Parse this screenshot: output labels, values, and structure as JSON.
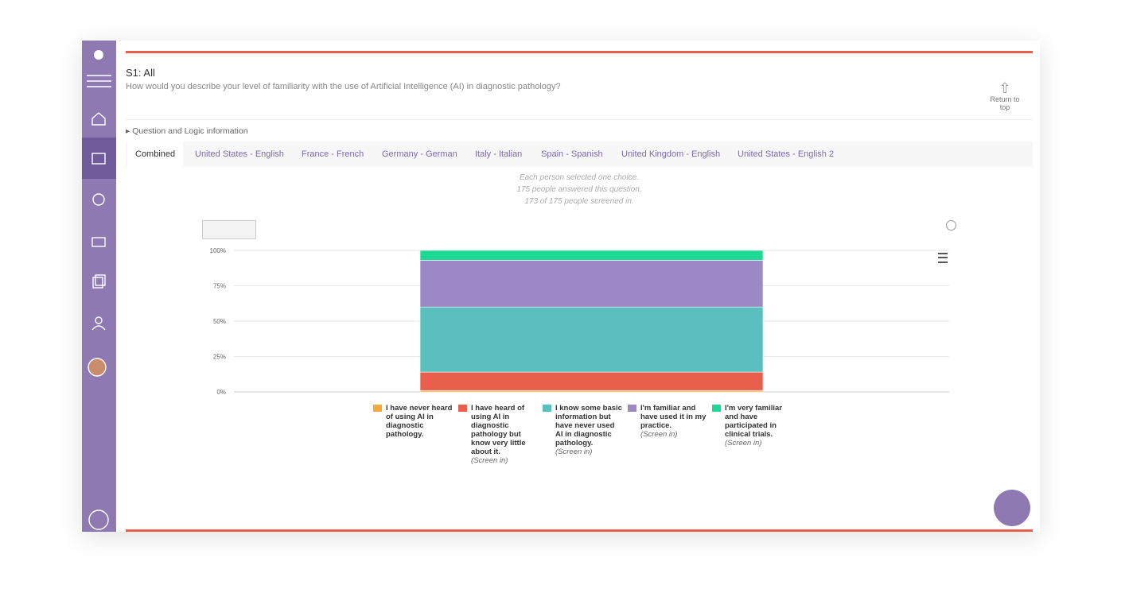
{
  "header": {
    "title": "S1: All",
    "question": "How would you describe your level of familiarity with the use of Artificial Intelligence (AI) in diagnostic pathology?",
    "return_link": "Return to top"
  },
  "logic_toggle": "Question and Logic information",
  "tabs": [
    "Combined",
    "United States - English",
    "France - French",
    "Germany - German",
    "Italy - Italian",
    "Spain - Spanish",
    "United Kingdom - English",
    "United States - English 2"
  ],
  "info": [
    "Each person selected one choice.",
    "175 people answered this question.",
    "173 of 175 people screened in."
  ],
  "chart_data": {
    "type": "stacked_bar",
    "categories": [
      null
    ],
    "ylim": [
      0,
      100
    ],
    "yticks": [
      {
        "value": 0,
        "label": "0%"
      },
      {
        "value": 25,
        "label": "25%"
      },
      {
        "value": 50,
        "label": "50%"
      },
      {
        "value": 75,
        "label": "75%"
      },
      {
        "value": 100,
        "label": "100%"
      }
    ],
    "grid": true,
    "series": [
      {
        "name": "I have never heard of using AI in diagnostic pathology.",
        "color": "#f5a93b",
        "values": [
          1
        ]
      },
      {
        "name": "I have heard of using AI in diagnostic pathology but know very little about it.",
        "tag": "(Screen in)",
        "color": "#e8604c",
        "values": [
          13
        ]
      },
      {
        "name": "I know some basic information but have never used AI in diagnostic pathology.",
        "tag": "(Screen in)",
        "color": "#5bbfbd",
        "values": [
          46
        ]
      },
      {
        "name": "I'm familiar and have used it in my practice.",
        "tag": "(Screen in)",
        "color": "#9b88c4",
        "values": [
          33
        ]
      },
      {
        "name": "I'm very familiar and have participated in clinical trials.",
        "tag": "(Screen in)",
        "color": "#1ed996",
        "values": [
          7
        ]
      }
    ]
  }
}
